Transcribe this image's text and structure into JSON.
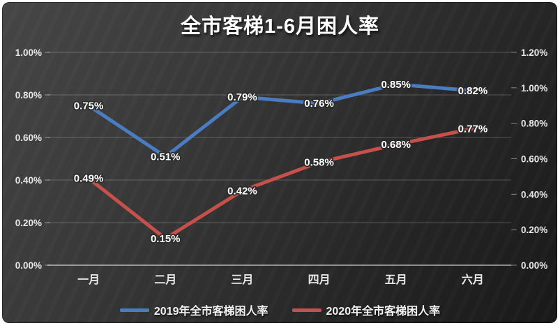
{
  "chart": {
    "title": "全市客梯1-6月困人率"
  },
  "chart_data": {
    "type": "line",
    "title": "全市客梯1-6月困人率",
    "categories": [
      "一月",
      "二月",
      "三月",
      "四月",
      "五月",
      "六月"
    ],
    "series": [
      {
        "name": "2019年全市客梯困人率",
        "axis": "left",
        "color": "#4A7CC2",
        "values": [
          0.75,
          0.51,
          0.79,
          0.76,
          0.85,
          0.82
        ],
        "labels": [
          "0.75%",
          "0.51%",
          "0.79%",
          "0.76%",
          "0.85%",
          "0.82%"
        ]
      },
      {
        "name": "2020年全市客梯困人率",
        "axis": "right",
        "color": "#C8504A",
        "values": [
          0.49,
          0.15,
          0.42,
          0.58,
          0.68,
          0.77
        ],
        "labels": [
          "0.49%",
          "0.15%",
          "0.42%",
          "0.58%",
          "0.68%",
          "0.77%"
        ]
      }
    ],
    "left_axis": {
      "min": 0,
      "max": 1.0,
      "step": 0.2,
      "tick_labels": [
        "0.00%",
        "0.20%",
        "0.40%",
        "0.60%",
        "0.80%",
        "1.00%"
      ]
    },
    "right_axis": {
      "min": 0,
      "max": 1.2,
      "step": 0.2,
      "tick_labels": [
        "0.00%",
        "0.20%",
        "0.40%",
        "0.60%",
        "0.80%",
        "1.00%",
        "1.20%"
      ]
    },
    "grid": true,
    "legend_position": "bottom",
    "colors": {
      "background_from": "#464646",
      "background_to": "#191919",
      "frame": "#ffffff",
      "gridline": "rgba(255,255,255,0.22)",
      "axis_line": "rgba(255,255,255,0.65)",
      "tick_text": "#e8e8e8",
      "data_label_text": "#ffffff",
      "title_text": "#ffffff"
    }
  }
}
